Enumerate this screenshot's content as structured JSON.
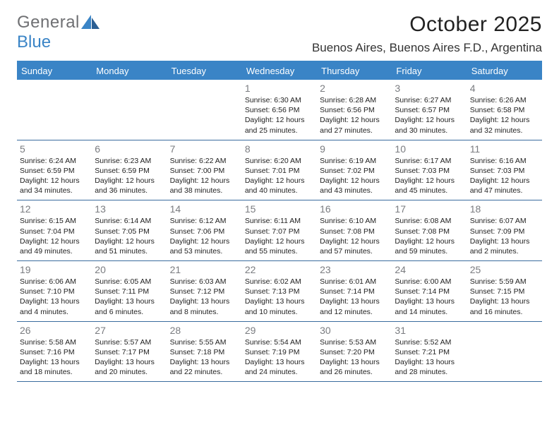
{
  "brand": {
    "word1": "General",
    "word2": "Blue"
  },
  "title": "October 2025",
  "location": "Buenos Aires, Buenos Aires F.D., Argentina",
  "calendar": {
    "type": "table",
    "header_bg": "#3a84c6",
    "header_fg": "#ffffff",
    "rule_color": "#3a6c9e",
    "daynum_color": "#7a7c80",
    "text_color": "#222222",
    "background_color": "#ffffff",
    "title_fontsize": 30,
    "location_fontsize": 17,
    "header_fontsize": 13,
    "daynum_fontsize": 14,
    "body_fontsize": 10.5,
    "columns": [
      "Sunday",
      "Monday",
      "Tuesday",
      "Wednesday",
      "Thursday",
      "Friday",
      "Saturday"
    ],
    "weeks": [
      [
        {
          "n": "",
          "sr": "",
          "ss": "",
          "dl": ""
        },
        {
          "n": "",
          "sr": "",
          "ss": "",
          "dl": ""
        },
        {
          "n": "",
          "sr": "",
          "ss": "",
          "dl": ""
        },
        {
          "n": "1",
          "sr": "Sunrise: 6:30 AM",
          "ss": "Sunset: 6:56 PM",
          "dl": "Daylight: 12 hours and 25 minutes."
        },
        {
          "n": "2",
          "sr": "Sunrise: 6:28 AM",
          "ss": "Sunset: 6:56 PM",
          "dl": "Daylight: 12 hours and 27 minutes."
        },
        {
          "n": "3",
          "sr": "Sunrise: 6:27 AM",
          "ss": "Sunset: 6:57 PM",
          "dl": "Daylight: 12 hours and 30 minutes."
        },
        {
          "n": "4",
          "sr": "Sunrise: 6:26 AM",
          "ss": "Sunset: 6:58 PM",
          "dl": "Daylight: 12 hours and 32 minutes."
        }
      ],
      [
        {
          "n": "5",
          "sr": "Sunrise: 6:24 AM",
          "ss": "Sunset: 6:59 PM",
          "dl": "Daylight: 12 hours and 34 minutes."
        },
        {
          "n": "6",
          "sr": "Sunrise: 6:23 AM",
          "ss": "Sunset: 6:59 PM",
          "dl": "Daylight: 12 hours and 36 minutes."
        },
        {
          "n": "7",
          "sr": "Sunrise: 6:22 AM",
          "ss": "Sunset: 7:00 PM",
          "dl": "Daylight: 12 hours and 38 minutes."
        },
        {
          "n": "8",
          "sr": "Sunrise: 6:20 AM",
          "ss": "Sunset: 7:01 PM",
          "dl": "Daylight: 12 hours and 40 minutes."
        },
        {
          "n": "9",
          "sr": "Sunrise: 6:19 AM",
          "ss": "Sunset: 7:02 PM",
          "dl": "Daylight: 12 hours and 43 minutes."
        },
        {
          "n": "10",
          "sr": "Sunrise: 6:17 AM",
          "ss": "Sunset: 7:03 PM",
          "dl": "Daylight: 12 hours and 45 minutes."
        },
        {
          "n": "11",
          "sr": "Sunrise: 6:16 AM",
          "ss": "Sunset: 7:03 PM",
          "dl": "Daylight: 12 hours and 47 minutes."
        }
      ],
      [
        {
          "n": "12",
          "sr": "Sunrise: 6:15 AM",
          "ss": "Sunset: 7:04 PM",
          "dl": "Daylight: 12 hours and 49 minutes."
        },
        {
          "n": "13",
          "sr": "Sunrise: 6:14 AM",
          "ss": "Sunset: 7:05 PM",
          "dl": "Daylight: 12 hours and 51 minutes."
        },
        {
          "n": "14",
          "sr": "Sunrise: 6:12 AM",
          "ss": "Sunset: 7:06 PM",
          "dl": "Daylight: 12 hours and 53 minutes."
        },
        {
          "n": "15",
          "sr": "Sunrise: 6:11 AM",
          "ss": "Sunset: 7:07 PM",
          "dl": "Daylight: 12 hours and 55 minutes."
        },
        {
          "n": "16",
          "sr": "Sunrise: 6:10 AM",
          "ss": "Sunset: 7:08 PM",
          "dl": "Daylight: 12 hours and 57 minutes."
        },
        {
          "n": "17",
          "sr": "Sunrise: 6:08 AM",
          "ss": "Sunset: 7:08 PM",
          "dl": "Daylight: 12 hours and 59 minutes."
        },
        {
          "n": "18",
          "sr": "Sunrise: 6:07 AM",
          "ss": "Sunset: 7:09 PM",
          "dl": "Daylight: 13 hours and 2 minutes."
        }
      ],
      [
        {
          "n": "19",
          "sr": "Sunrise: 6:06 AM",
          "ss": "Sunset: 7:10 PM",
          "dl": "Daylight: 13 hours and 4 minutes."
        },
        {
          "n": "20",
          "sr": "Sunrise: 6:05 AM",
          "ss": "Sunset: 7:11 PM",
          "dl": "Daylight: 13 hours and 6 minutes."
        },
        {
          "n": "21",
          "sr": "Sunrise: 6:03 AM",
          "ss": "Sunset: 7:12 PM",
          "dl": "Daylight: 13 hours and 8 minutes."
        },
        {
          "n": "22",
          "sr": "Sunrise: 6:02 AM",
          "ss": "Sunset: 7:13 PM",
          "dl": "Daylight: 13 hours and 10 minutes."
        },
        {
          "n": "23",
          "sr": "Sunrise: 6:01 AM",
          "ss": "Sunset: 7:14 PM",
          "dl": "Daylight: 13 hours and 12 minutes."
        },
        {
          "n": "24",
          "sr": "Sunrise: 6:00 AM",
          "ss": "Sunset: 7:14 PM",
          "dl": "Daylight: 13 hours and 14 minutes."
        },
        {
          "n": "25",
          "sr": "Sunrise: 5:59 AM",
          "ss": "Sunset: 7:15 PM",
          "dl": "Daylight: 13 hours and 16 minutes."
        }
      ],
      [
        {
          "n": "26",
          "sr": "Sunrise: 5:58 AM",
          "ss": "Sunset: 7:16 PM",
          "dl": "Daylight: 13 hours and 18 minutes."
        },
        {
          "n": "27",
          "sr": "Sunrise: 5:57 AM",
          "ss": "Sunset: 7:17 PM",
          "dl": "Daylight: 13 hours and 20 minutes."
        },
        {
          "n": "28",
          "sr": "Sunrise: 5:55 AM",
          "ss": "Sunset: 7:18 PM",
          "dl": "Daylight: 13 hours and 22 minutes."
        },
        {
          "n": "29",
          "sr": "Sunrise: 5:54 AM",
          "ss": "Sunset: 7:19 PM",
          "dl": "Daylight: 13 hours and 24 minutes."
        },
        {
          "n": "30",
          "sr": "Sunrise: 5:53 AM",
          "ss": "Sunset: 7:20 PM",
          "dl": "Daylight: 13 hours and 26 minutes."
        },
        {
          "n": "31",
          "sr": "Sunrise: 5:52 AM",
          "ss": "Sunset: 7:21 PM",
          "dl": "Daylight: 13 hours and 28 minutes."
        },
        {
          "n": "",
          "sr": "",
          "ss": "",
          "dl": ""
        }
      ]
    ]
  }
}
